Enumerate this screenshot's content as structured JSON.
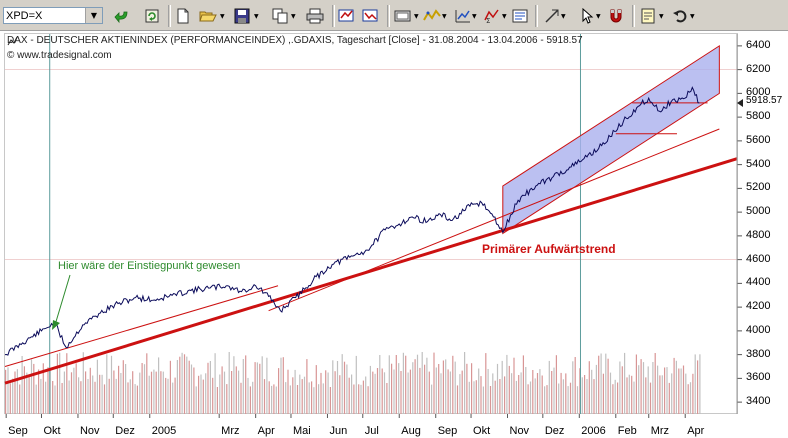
{
  "toolbar": {
    "symbol_value": "XPD=X",
    "buttons": [
      "back-arrow-icon",
      "refresh-icon",
      "new-icon",
      "open-folder-icon",
      "save-icon",
      "copy-icon",
      "print-icon",
      "edit-icon",
      "chart-window-icon",
      "chart-settings-icon",
      "indicator-icon",
      "statistics-icon",
      "properties-icon",
      "draw-line-icon",
      "cursor-icon",
      "magnet-icon",
      "note-icon",
      "undo-icon"
    ]
  },
  "chart_data": {
    "type": "line",
    "title": "DAX - DEUTSCHER AKTIENINDEX (PERFORMANCEINDEX) ,.GDAXIS, Tageschart [Close] - 31.08.2004 - 13.04.2006 - 5918.57",
    "credit": "© www.tradesignal.com",
    "y_ticks": [
      3400,
      3600,
      3800,
      4000,
      4200,
      4400,
      4600,
      4800,
      5000,
      5200,
      5400,
      5600,
      5800,
      6000,
      6200,
      6400
    ],
    "ylim": [
      3300,
      6500
    ],
    "last_value_label": "5918.57",
    "x_ticks": [
      "Sep",
      "Okt",
      "Nov",
      "Dez",
      "2005",
      "Mrz",
      "Apr",
      "Mai",
      "Jun",
      "Jul",
      "Aug",
      "Sep",
      "Okt",
      "Nov",
      "Dez",
      "2006",
      "Feb",
      "Mrz",
      "Apr"
    ],
    "x_tick_dates": [
      "2004-09-01",
      "2004-10-01",
      "2004-11-01",
      "2004-12-01",
      "2005-01-01",
      "2005-03-01",
      "2005-04-01",
      "2005-05-01",
      "2005-06-01",
      "2005-07-01",
      "2005-08-01",
      "2005-09-01",
      "2005-10-01",
      "2005-11-01",
      "2005-12-01",
      "2006-01-01",
      "2006-02-01",
      "2006-03-01",
      "2006-04-01"
    ],
    "xlim": [
      "2004-08-31",
      "2006-05-15"
    ],
    "series": [
      {
        "name": "DAX",
        "color": "#0a0a5a",
        "x": [
          "2004-08-31",
          "2004-09-15",
          "2004-10-01",
          "2004-10-12",
          "2004-10-22",
          "2004-11-05",
          "2004-11-20",
          "2004-12-05",
          "2004-12-20",
          "2005-01-05",
          "2005-01-20",
          "2005-02-05",
          "2005-02-20",
          "2005-03-07",
          "2005-03-20",
          "2005-04-01",
          "2005-04-12",
          "2005-04-22",
          "2005-05-05",
          "2005-05-20",
          "2005-06-05",
          "2005-06-20",
          "2005-07-05",
          "2005-07-20",
          "2005-08-01",
          "2005-08-12",
          "2005-08-25",
          "2005-09-05",
          "2005-09-15",
          "2005-09-30",
          "2005-10-10",
          "2005-10-20",
          "2005-10-28",
          "2005-11-10",
          "2005-11-25",
          "2005-12-10",
          "2005-12-25",
          "2006-01-05",
          "2006-01-20",
          "2006-01-31",
          "2006-02-10",
          "2006-02-20",
          "2006-03-01",
          "2006-03-10",
          "2006-03-20",
          "2006-04-01",
          "2006-04-07",
          "2006-04-13"
        ],
        "y": [
          3800,
          3900,
          4000,
          4070,
          3860,
          4050,
          4150,
          4230,
          4280,
          4260,
          4300,
          4340,
          4360,
          4380,
          4330,
          4380,
          4290,
          4170,
          4280,
          4430,
          4560,
          4620,
          4680,
          4850,
          4900,
          4960,
          4920,
          4980,
          4930,
          5050,
          5080,
          4960,
          4830,
          5100,
          5220,
          5300,
          5380,
          5450,
          5560,
          5680,
          5790,
          5890,
          5960,
          5850,
          5930,
          5960,
          6050,
          5918.57
        ]
      }
    ],
    "volume": {
      "color_even": "#d89595",
      "color_odd": "#c0c0c0",
      "range": [
        3400,
        3900
      ]
    },
    "trendlines": [
      {
        "name": "primary-trendline",
        "color": "#cc1111",
        "x": [
          "2004-08-31",
          "2006-05-15"
        ],
        "y": [
          3560,
          5450
        ]
      },
      {
        "name": "upper-trendline-1",
        "color": "#cc1111",
        "x": [
          "2004-08-31",
          "2005-04-20"
        ],
        "y": [
          3700,
          4380
        ]
      },
      {
        "name": "upper-trendline-2",
        "color": "#cc1111",
        "x": [
          "2005-04-12",
          "2006-04-30"
        ],
        "y": [
          4170,
          5700
        ]
      },
      {
        "name": "resistance-line",
        "color": "#cc1111",
        "x": [
          "2006-02-15",
          "2006-04-20"
        ],
        "y": [
          5920,
          5920
        ]
      },
      {
        "name": "support-line",
        "color": "#cc1111",
        "x": [
          "2006-02-01",
          "2006-03-25"
        ],
        "y": [
          5660,
          5660
        ]
      }
    ],
    "channel": {
      "color": "#aab0ee",
      "x": [
        "2005-10-28",
        "2006-04-30"
      ],
      "lower": [
        4820,
        6000
      ],
      "upper": [
        5220,
        6400
      ]
    },
    "vertical_lines": [
      {
        "x": "2004-10-08",
        "color": "#5c9c9c"
      },
      {
        "x": "2006-01-02",
        "color": "#5c9c9c"
      }
    ],
    "hlines": [
      4600,
      6200
    ],
    "annotations": [
      {
        "text": "Hier wäre der Einstiegpunkt gewesen",
        "color": "#2e8b2e"
      },
      {
        "text": "Primärer Aufwärtstrend",
        "color": "#cc1111"
      }
    ],
    "grid": false
  }
}
